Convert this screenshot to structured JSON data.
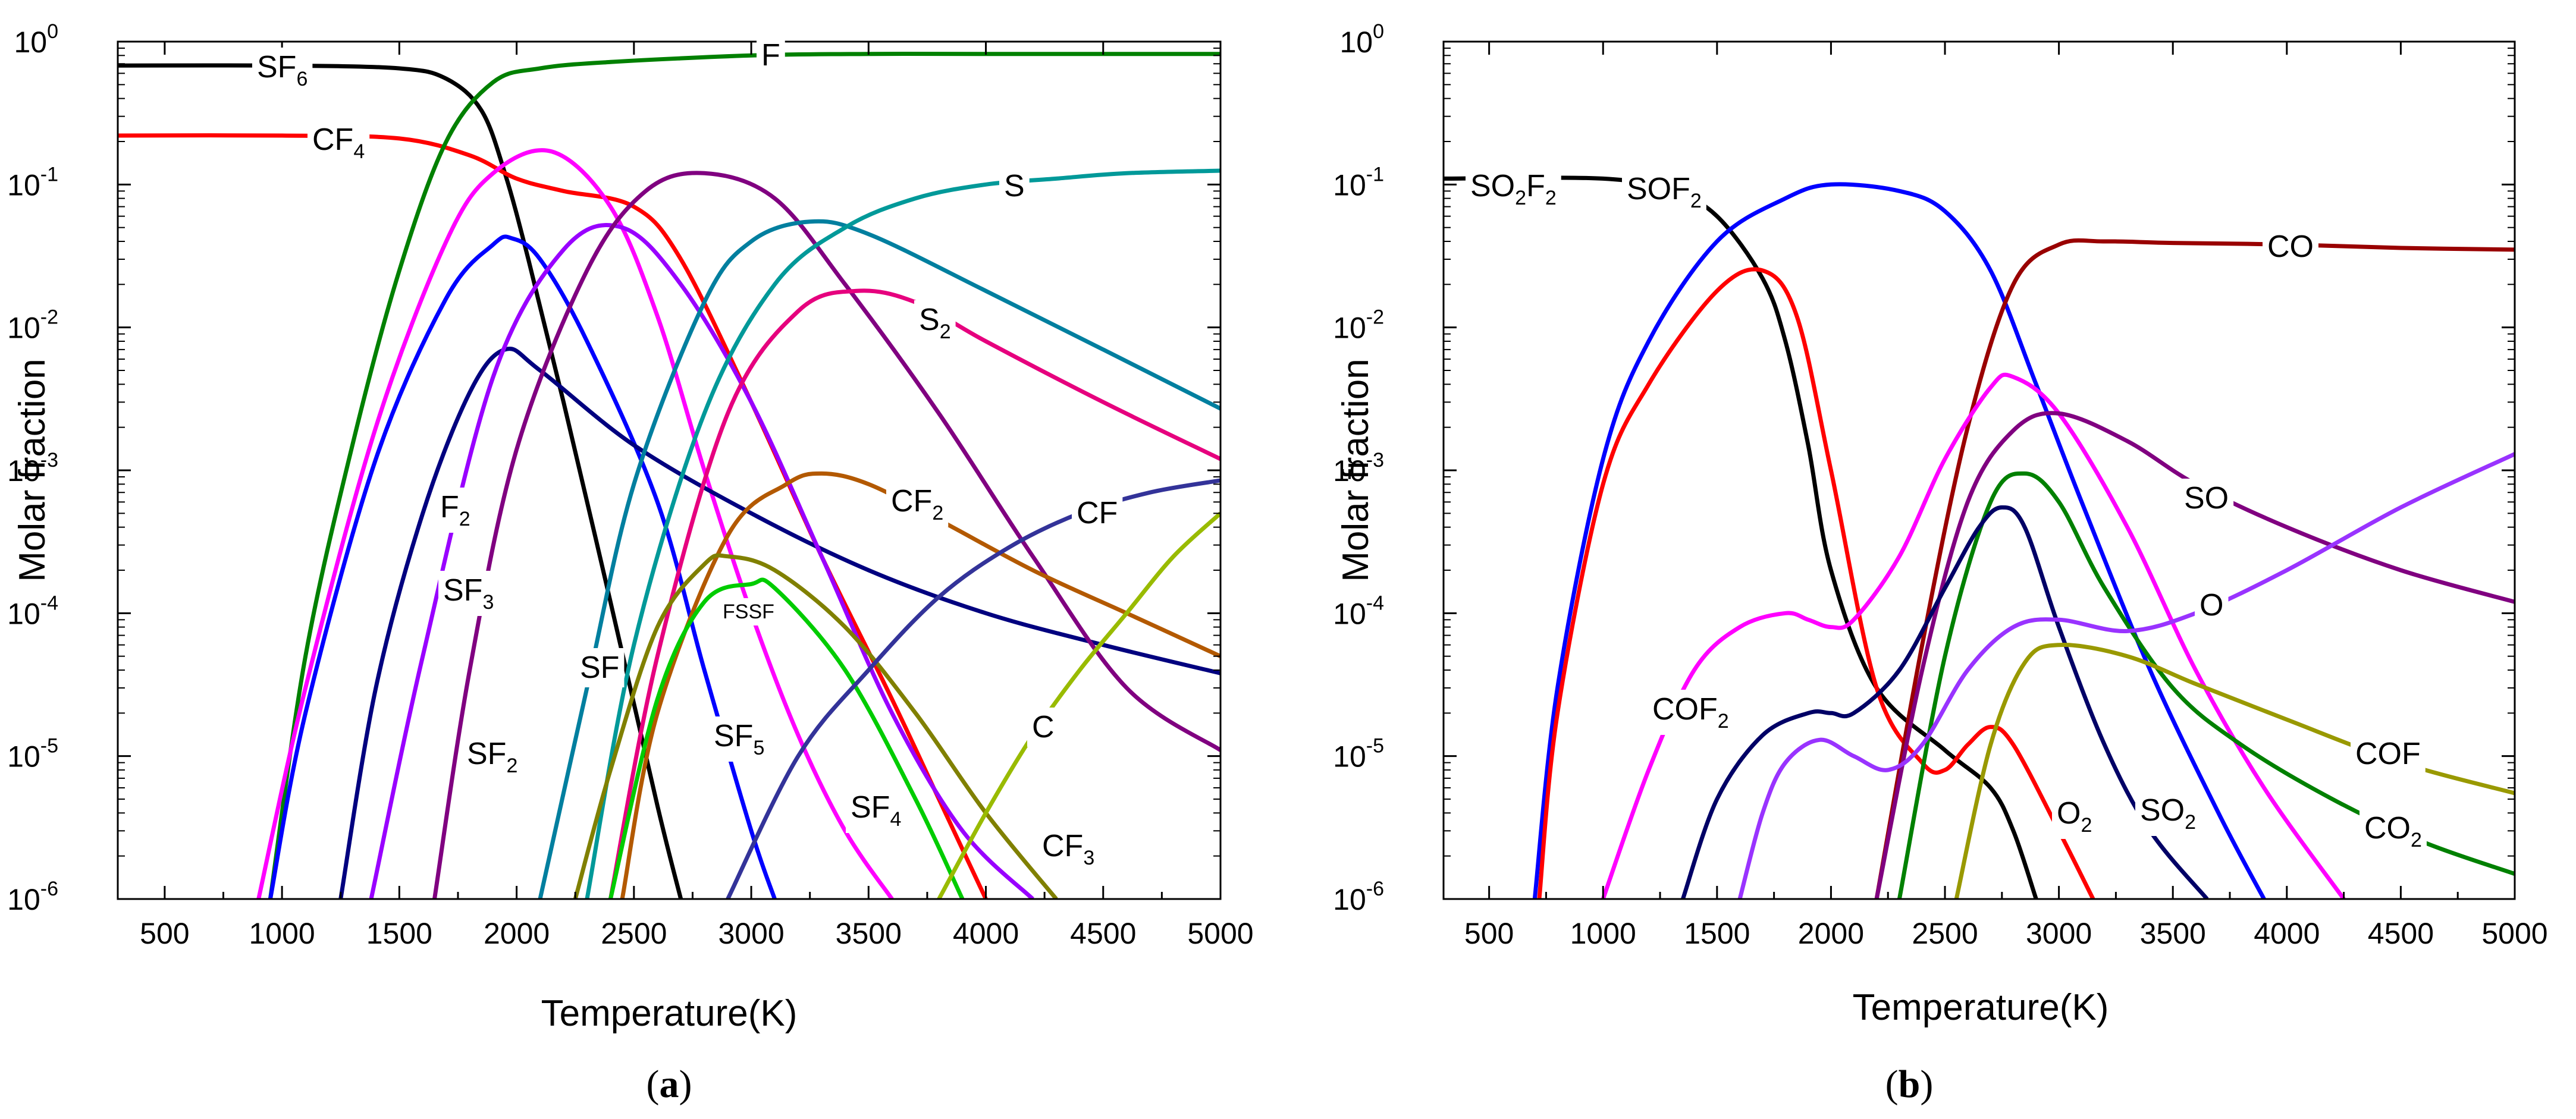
{
  "chart_data": [
    {
      "type": "line",
      "panel_label": "(a)",
      "panel_letter": "a",
      "xlabel": "Temperature(K)",
      "ylabel": "Molar fraction",
      "xlim": [
        300,
        5000
      ],
      "ylim": [
        1e-06,
        1
      ],
      "yscale": "log",
      "x_ticks": [
        500,
        1000,
        1500,
        2000,
        2500,
        3000,
        3500,
        4000,
        4500,
        5000
      ],
      "y_ticks": [
        {
          "base": "10",
          "exp": "-6"
        },
        {
          "base": "10",
          "exp": "-5"
        },
        {
          "base": "10",
          "exp": "-4"
        },
        {
          "base": "10",
          "exp": "-3"
        },
        {
          "base": "10",
          "exp": "-2"
        },
        {
          "base": "10",
          "exp": "-1"
        },
        {
          "base": "10",
          "exp": "0"
        }
      ],
      "series": [
        {
          "name": "SF6",
          "label_main": "SF",
          "label_sub": "6",
          "color": "#000000",
          "x": [
            300,
            1000,
            1500,
            1700,
            1850,
            1950,
            2050,
            2200,
            2400,
            2600,
            2700
          ],
          "y": [
            0.68,
            0.68,
            0.65,
            0.55,
            0.33,
            0.12,
            0.03,
            0.003,
            0.00012,
            4.5e-06,
            1e-06
          ]
        },
        {
          "name": "CF4",
          "label_main": "CF",
          "label_sub": "4",
          "color": "#ff0000",
          "x": [
            300,
            1000,
            1500,
            1800,
            2000,
            2200,
            2500,
            2700,
            3000,
            3300,
            3600,
            3800,
            4000
          ],
          "y": [
            0.22,
            0.22,
            0.21,
            0.16,
            0.11,
            0.09,
            0.07,
            0.03,
            0.003,
            0.00025,
            2.5e-05,
            5e-06,
            1e-06
          ]
        },
        {
          "name": "F",
          "label_main": "F",
          "label_sub": "",
          "color": "#008000",
          "x": [
            950,
            1100,
            1300,
            1500,
            1700,
            1900,
            2100,
            2400,
            3000,
            3500,
            4000,
            5000
          ],
          "y": [
            1e-06,
            5e-05,
            0.0015,
            0.025,
            0.2,
            0.52,
            0.65,
            0.72,
            0.8,
            0.82,
            0.82,
            0.82
          ]
        },
        {
          "name": "SF5",
          "label_main": "SF",
          "label_sub": "5",
          "color": "#ff00ff",
          "x": [
            900,
            1100,
            1400,
            1700,
            1900,
            2150,
            2400,
            2600,
            2800,
            3000,
            3200,
            3400,
            3600
          ],
          "y": [
            1e-06,
            3e-05,
            0.002,
            0.04,
            0.12,
            0.17,
            0.07,
            0.012,
            0.001,
            0.0001,
            1.4e-05,
            3e-06,
            1e-06
          ]
        },
        {
          "name": "SF4",
          "label_main": "SF",
          "label_sub": "4",
          "color": "#0000ff",
          "x": [
            950,
            1100,
            1400,
            1700,
            1900,
            1980,
            2100,
            2300,
            2600,
            2800,
            3000,
            3100
          ],
          "y": [
            1e-06,
            2e-05,
            0.0012,
            0.016,
            0.038,
            0.042,
            0.03,
            0.008,
            0.0006,
            4e-05,
            3e-06,
            1e-06
          ]
        },
        {
          "name": "F2",
          "label_main": "F",
          "label_sub": "2",
          "color": "#00007f",
          "x": [
            1250,
            1400,
            1600,
            1800,
            1950,
            2100,
            2500,
            3000,
            3500,
            4000,
            4500,
            5000
          ],
          "y": [
            1e-06,
            3e-05,
            0.0005,
            0.0035,
            0.007,
            0.005,
            0.0015,
            0.0005,
            0.0002,
            0.0001,
            6e-05,
            3.8e-05
          ]
        },
        {
          "name": "SF3",
          "label_main": "SF",
          "label_sub": "3",
          "color": "#9900ff",
          "x": [
            1380,
            1600,
            1900,
            2200,
            2450,
            2700,
            3000,
            3300,
            3600,
            3900,
            4200
          ],
          "y": [
            1e-06,
            5e-05,
            0.0045,
            0.035,
            0.05,
            0.02,
            0.003,
            0.00025,
            2e-05,
            3e-06,
            1e-06
          ]
        },
        {
          "name": "SF2",
          "label_main": "SF",
          "label_sub": "2",
          "color": "#800080",
          "x": [
            1650,
            1800,
            2000,
            2300,
            2550,
            2800,
            3100,
            3400,
            3800,
            4200,
            4600,
            5000
          ],
          "y": [
            1e-06,
            4e-05,
            0.0014,
            0.025,
            0.09,
            0.12,
            0.08,
            0.02,
            0.0025,
            0.00025,
            3e-05,
            1.1e-05
          ]
        },
        {
          "name": "SF",
          "label_main": "SF",
          "label_sub": "",
          "color": "#007f9f",
          "x": [
            2100,
            2300,
            2500,
            2800,
            3000,
            3250,
            3500,
            4000,
            4500,
            5000
          ],
          "y": [
            1e-06,
            3e-05,
            0.0008,
            0.015,
            0.04,
            0.055,
            0.045,
            0.018,
            0.007,
            0.0027
          ]
        },
        {
          "name": "S",
          "label_main": "S",
          "label_sub": "",
          "color": "#009999",
          "x": [
            2300,
            2500,
            2800,
            3100,
            3400,
            3700,
            4000,
            4300,
            4600,
            5000
          ],
          "y": [
            1e-06,
            6e-05,
            0.0025,
            0.02,
            0.05,
            0.08,
            0.1,
            0.11,
            0.12,
            0.125
          ]
        },
        {
          "name": "S2",
          "label_main": "S",
          "label_sub": "2",
          "color": "#e6007e",
          "x": [
            2400,
            2600,
            2900,
            3200,
            3450,
            3700,
            4000,
            4500,
            5000
          ],
          "y": [
            1e-06,
            5e-05,
            0.0025,
            0.013,
            0.018,
            0.015,
            0.008,
            0.003,
            0.0012
          ]
        },
        {
          "name": "CF2",
          "label_main": "CF",
          "label_sub": "2",
          "color": "#b35900",
          "x": [
            2450,
            2600,
            2900,
            3150,
            3300,
            3500,
            3800,
            4200,
            4600,
            5000
          ],
          "y": [
            1e-06,
            2e-05,
            0.00035,
            0.0008,
            0.00095,
            0.0008,
            0.00045,
            0.0002,
            0.0001,
            5e-05
          ]
        },
        {
          "name": "CF3",
          "label_main": "CF",
          "label_sub": "3",
          "color": "#808000",
          "x": [
            2250,
            2400,
            2600,
            2800,
            2900,
            3100,
            3400,
            3700,
            4000,
            4300
          ],
          "y": [
            1e-06,
            8e-06,
            8e-05,
            0.00022,
            0.00025,
            0.0002,
            8e-05,
            2e-05,
            4e-06,
            1e-06
          ]
        },
        {
          "name": "FSSF",
          "label_main": "FSSF",
          "label_sub": "",
          "color": "#00cc00",
          "x": [
            2400,
            2600,
            2800,
            3000,
            3100,
            3400,
            3700,
            3900
          ],
          "y": [
            1e-06,
            2.5e-05,
            0.00012,
            0.00016,
            0.00015,
            4e-05,
            5e-06,
            1e-06
          ]
        },
        {
          "name": "CF",
          "label_main": "CF",
          "label_sub": "",
          "color": "#333399",
          "x": [
            2900,
            3200,
            3500,
            3800,
            4100,
            4400,
            4700,
            5000
          ],
          "y": [
            1e-06,
            1e-05,
            4e-05,
            0.00013,
            0.00029,
            0.0005,
            0.0007,
            0.00085
          ]
        },
        {
          "name": "C",
          "label_main": "C",
          "label_sub": "",
          "color": "#99bb00",
          "x": [
            3800,
            4000,
            4200,
            4400,
            4600,
            4800,
            5000
          ],
          "y": [
            1e-06,
            4e-06,
            1.4e-05,
            4e-05,
            0.0001,
            0.00025,
            0.0005
          ]
        }
      ]
    },
    {
      "type": "line",
      "panel_label": "(b)",
      "panel_letter": "b",
      "xlabel": "Temperature(K)",
      "ylabel": "Molar fraction",
      "xlim": [
        300,
        5000
      ],
      "ylim": [
        1e-06,
        1
      ],
      "yscale": "log",
      "x_ticks": [
        500,
        1000,
        1500,
        2000,
        2500,
        3000,
        3500,
        4000,
        4500,
        5000
      ],
      "y_ticks": [
        {
          "base": "10",
          "exp": "-6"
        },
        {
          "base": "10",
          "exp": "-5"
        },
        {
          "base": "10",
          "exp": "-4"
        },
        {
          "base": "10",
          "exp": "-3"
        },
        {
          "base": "10",
          "exp": "-2"
        },
        {
          "base": "10",
          "exp": "-1"
        },
        {
          "base": "10",
          "exp": "0"
        }
      ],
      "series": [
        {
          "name": "SO2F2",
          "label_main": "SO",
          "label_sub": "2",
          "label_main2": "F",
          "label_sub2": "2",
          "color": "#000000",
          "x": [
            300,
            1000,
            1300,
            1500,
            1700,
            1800,
            1900,
            2000,
            2200,
            2500,
            2700,
            2800,
            2900
          ],
          "y": [
            0.11,
            0.11,
            0.09,
            0.06,
            0.022,
            0.008,
            0.0015,
            0.0002,
            3e-05,
            1.1e-05,
            6e-06,
            3e-06,
            1e-06
          ]
        },
        {
          "name": "SOF2",
          "label_main": "SOF",
          "label_sub": "2",
          "color": "#0000ff",
          "x": [
            700,
            800,
            1000,
            1200,
            1500,
            1800,
            2000,
            2300,
            2500,
            2700,
            2900,
            3100,
            3400,
            3700,
            3900
          ],
          "y": [
            1e-06,
            3e-05,
            0.0012,
            0.008,
            0.04,
            0.08,
            0.1,
            0.09,
            0.065,
            0.025,
            0.004,
            0.0006,
            4e-05,
            4e-06,
            1e-06
          ]
        },
        {
          "name": "red (unlabeled)",
          "color": "#ff0000",
          "x": [
            720,
            800,
            1000,
            1200,
            1500,
            1700,
            1850,
            2000,
            2200,
            2400,
            2500,
            2600,
            2700,
            2800,
            3000,
            3150
          ],
          "y": [
            1e-06,
            2e-05,
            0.0008,
            0.004,
            0.018,
            0.025,
            0.012,
            0.001,
            3e-05,
            9e-06,
            8e-06,
            1.2e-05,
            1.6e-05,
            1.2e-05,
            3e-06,
            1e-06
          ]
        },
        {
          "name": "CO",
          "label_main": "CO",
          "label_sub": "",
          "color": "#990000",
          "x": [
            2200,
            2400,
            2600,
            2800,
            3000,
            3200,
            3500,
            4000,
            4500,
            5000
          ],
          "y": [
            1e-06,
            6e-05,
            0.002,
            0.02,
            0.038,
            0.04,
            0.039,
            0.038,
            0.036,
            0.035
          ]
        },
        {
          "name": "COF2",
          "label_main": "COF",
          "label_sub": "2",
          "color": "#ff00ff",
          "x": [
            1000,
            1200,
            1400,
            1600,
            1800,
            1900,
            2000,
            2100,
            2300,
            2500,
            2700,
            2800,
            3000,
            3300,
            3600,
            3900,
            4250
          ],
          "y": [
            1e-06,
            8e-06,
            4e-05,
            8e-05,
            0.0001,
            9e-05,
            8e-05,
            9e-05,
            0.00025,
            0.0012,
            0.0038,
            0.0045,
            0.0025,
            0.0004,
            4e-05,
            6e-06,
            1e-06
          ]
        },
        {
          "name": "SO",
          "label_main": "SO",
          "label_sub": "",
          "color": "#800080",
          "x": [
            2200,
            2400,
            2600,
            2800,
            3000,
            3300,
            3600,
            4000,
            4500,
            5000
          ],
          "y": [
            1e-06,
            4e-05,
            0.0006,
            0.0019,
            0.0025,
            0.0016,
            0.0008,
            0.0004,
            0.0002,
            0.00012
          ]
        },
        {
          "name": "CO2",
          "label_main": "CO",
          "label_sub": "2",
          "color": "#008000",
          "x": [
            2300,
            2500,
            2700,
            2850,
            3000,
            3200,
            3500,
            3800,
            4200,
            4600,
            5000
          ],
          "y": [
            1e-06,
            5e-05,
            0.0006,
            0.00095,
            0.0006,
            0.00015,
            3e-05,
            1.2e-05,
            5e-06,
            2.5e-06,
            1.5e-06
          ]
        },
        {
          "name": "SO2",
          "label_main": "SO",
          "label_sub": "2",
          "color": "#000066",
          "x": [
            1350,
            1500,
            1700,
            1900,
            2000,
            2100,
            2300,
            2500,
            2650,
            2750,
            2850,
            3000,
            3200,
            3400,
            3650
          ],
          "y": [
            1e-06,
            5e-06,
            1.4e-05,
            2e-05,
            2e-05,
            2e-05,
            4e-05,
            0.00015,
            0.0004,
            0.00055,
            0.0004,
            8e-05,
            1.2e-05,
            3e-06,
            1e-06
          ]
        },
        {
          "name": "O",
          "label_main": "O",
          "label_sub": "",
          "color": "#9933ff",
          "x": [
            1600,
            1700,
            1800,
            1950,
            2100,
            2250,
            2400,
            2600,
            2800,
            3000,
            3300,
            3600,
            4000,
            4500,
            5000
          ],
          "y": [
            1e-06,
            4e-06,
            9e-06,
            1.3e-05,
            1e-05,
            8e-06,
            1.2e-05,
            4e-05,
            8e-05,
            9e-05,
            7.5e-05,
            0.0001,
            0.0002,
            0.00055,
            0.0013
          ]
        },
        {
          "name": "COF",
          "label_main": "COF",
          "label_sub": "",
          "color": "#999900",
          "x": [
            2550,
            2700,
            2850,
            3000,
            3300,
            3600,
            4000,
            4500,
            5000
          ],
          "y": [
            1e-06,
            1.2e-05,
            4.5e-05,
            6e-05,
            5e-05,
            3.2e-05,
            1.8e-05,
            9e-06,
            5.5e-06
          ]
        },
        {
          "name": "O2",
          "label_main": "O",
          "label_sub": "2",
          "color": "#ff0000",
          "x": [],
          "y": []
        }
      ]
    }
  ]
}
